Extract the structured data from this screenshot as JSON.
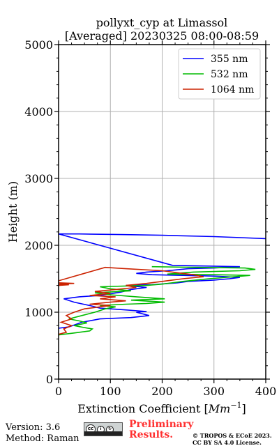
{
  "chart_data": {
    "type": "line",
    "title": "pollyxt_cyp at Limassol",
    "subtitle": "[Averaged] 20230325 08:00-08:59",
    "xlabel_main": "Extinction Coefficient [",
    "xlabel_unit_base": "Mm",
    "xlabel_unit_exp": "−1",
    "xlabel_close": "]",
    "ylabel": "Height (m)",
    "xlim": [
      0,
      400
    ],
    "ylim": [
      0,
      5000
    ],
    "xticks": [
      "0",
      "100",
      "200",
      "300",
      "400"
    ],
    "yticks": [
      "0",
      "1000",
      "2000",
      "3000",
      "4000",
      "5000"
    ],
    "grid": true,
    "legend_position": "top-right",
    "series": [
      {
        "name": "355 nm",
        "color": "#0000ff",
        "points": [
          [
            0,
            760
          ],
          [
            20,
            780
          ],
          [
            45,
            850
          ],
          [
            80,
            900
          ],
          [
            140,
            920
          ],
          [
            175,
            950
          ],
          [
            150,
            1000
          ],
          [
            170,
            1010
          ],
          [
            120,
            1040
          ],
          [
            80,
            1060
          ],
          [
            60,
            1100
          ],
          [
            30,
            1150
          ],
          [
            10,
            1200
          ],
          [
            40,
            1230
          ],
          [
            80,
            1250
          ],
          [
            120,
            1300
          ],
          [
            140,
            1340
          ],
          [
            170,
            1370
          ],
          [
            130,
            1400
          ],
          [
            180,
            1410
          ],
          [
            230,
            1440
          ],
          [
            250,
            1460
          ],
          [
            300,
            1480
          ],
          [
            330,
            1500
          ],
          [
            350,
            1520
          ],
          [
            300,
            1540
          ],
          [
            240,
            1550
          ],
          [
            180,
            1560
          ],
          [
            150,
            1580
          ],
          [
            170,
            1600
          ],
          [
            210,
            1620
          ],
          [
            250,
            1650
          ],
          [
            300,
            1660
          ],
          [
            350,
            1680
          ],
          [
            220,
            1700
          ],
          [
            0,
            2170
          ],
          [
            40,
            2170
          ],
          [
            120,
            2160
          ],
          [
            200,
            2150
          ],
          [
            300,
            2130
          ],
          [
            400,
            2100
          ]
        ]
      },
      {
        "name": "532 nm",
        "color": "#00bb00",
        "points": [
          [
            0,
            660
          ],
          [
            30,
            690
          ],
          [
            60,
            720
          ],
          [
            65,
            750
          ],
          [
            50,
            770
          ],
          [
            30,
            800
          ],
          [
            55,
            840
          ],
          [
            40,
            870
          ],
          [
            20,
            900
          ],
          [
            45,
            950
          ],
          [
            70,
            1000
          ],
          [
            90,
            1050
          ],
          [
            110,
            1080
          ],
          [
            80,
            1100
          ],
          [
            130,
            1120
          ],
          [
            170,
            1130
          ],
          [
            205,
            1150
          ],
          [
            140,
            1180
          ],
          [
            205,
            1200
          ],
          [
            150,
            1230
          ],
          [
            100,
            1260
          ],
          [
            70,
            1290
          ],
          [
            140,
            1320
          ],
          [
            100,
            1350
          ],
          [
            80,
            1380
          ],
          [
            170,
            1400
          ],
          [
            200,
            1420
          ],
          [
            240,
            1460
          ],
          [
            290,
            1500
          ],
          [
            340,
            1530
          ],
          [
            370,
            1550
          ],
          [
            300,
            1560
          ],
          [
            210,
            1570
          ],
          [
            260,
            1600
          ],
          [
            350,
            1620
          ],
          [
            380,
            1640
          ],
          [
            360,
            1660
          ],
          [
            270,
            1670
          ],
          [
            180,
            1680
          ]
        ]
      },
      {
        "name": "1064 nm",
        "color": "#cc2200",
        "points": [
          [
            0,
            670
          ],
          [
            15,
            700
          ],
          [
            10,
            750
          ],
          [
            25,
            800
          ],
          [
            5,
            850
          ],
          [
            25,
            900
          ],
          [
            15,
            950
          ],
          [
            30,
            1000
          ],
          [
            50,
            1050
          ],
          [
            80,
            1080
          ],
          [
            100,
            1100
          ],
          [
            60,
            1120
          ],
          [
            100,
            1150
          ],
          [
            130,
            1170
          ],
          [
            80,
            1200
          ],
          [
            110,
            1230
          ],
          [
            60,
            1250
          ],
          [
            100,
            1280
          ],
          [
            70,
            1310
          ],
          [
            110,
            1340
          ],
          [
            150,
            1370
          ],
          [
            130,
            1400
          ],
          [
            170,
            1430
          ],
          [
            200,
            1460
          ],
          [
            240,
            1500
          ],
          [
            280,
            1530
          ],
          [
            260,
            1560
          ],
          [
            230,
            1590
          ],
          [
            200,
            1620
          ],
          [
            130,
            1650
          ],
          [
            90,
            1670
          ],
          [
            0,
            1470
          ],
          [
            0,
            1440
          ],
          [
            30,
            1430
          ],
          [
            0,
            1420
          ],
          [
            20,
            1410
          ],
          [
            0,
            1400
          ]
        ]
      }
    ]
  },
  "footer": {
    "version": "Version: 3.6",
    "method": "Method: Raman",
    "preliminary_line1": "Preliminary",
    "preliminary_line2": "Results.",
    "copyright_line1": "© TROPOS & ECoE 2023.",
    "copyright_line2": "CC BY SA 4.0 License.",
    "license_badge_icon": "cc-by-sa-icon"
  },
  "colors": {
    "grid": "#b0b0b0",
    "axis": "#000000",
    "prelim": "#ff3030"
  }
}
